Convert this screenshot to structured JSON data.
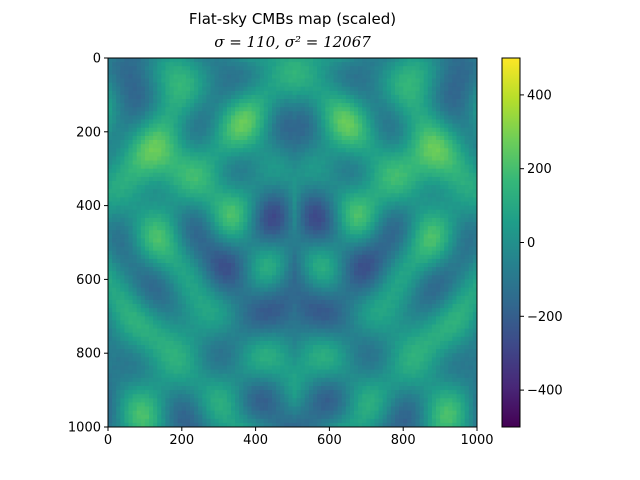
{
  "chart_data": {
    "type": "heatmap",
    "title": "Flat-sky CMBs map (scaled)",
    "subtitle": "σ = 110, σ² = 12067",
    "xlabel": "",
    "ylabel": "",
    "xlim": [
      0,
      1000
    ],
    "ylim": [
      1000,
      0
    ],
    "x_ticks": [
      0,
      200,
      400,
      600,
      800,
      1000
    ],
    "y_ticks": [
      0,
      200,
      400,
      600,
      800,
      1000
    ],
    "colorbar": {
      "colormap": "viridis",
      "range": [
        -500,
        500
      ],
      "ticks": [
        400,
        200,
        0,
        -200,
        -400
      ],
      "tick_labels": [
        "400",
        "200",
        "0",
        "−200",
        "−400"
      ]
    },
    "grid": false,
    "field_stats": {
      "sigma": 110,
      "variance": 12067
    }
  },
  "colors": {
    "viridis": [
      "#440154",
      "#482878",
      "#3e4989",
      "#31688e",
      "#26828e",
      "#1f9e89",
      "#35b779",
      "#6ece58",
      "#b5de2b",
      "#fde725"
    ]
  }
}
